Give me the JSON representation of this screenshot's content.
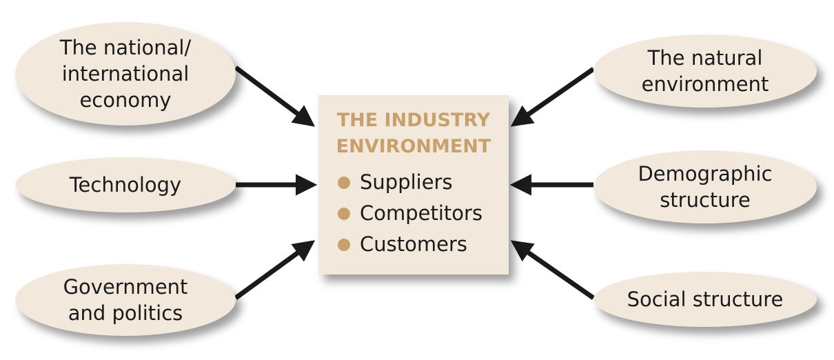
{
  "industry": {
    "title": "THE INDUSTRY\nENVIRONMENT",
    "items": [
      "Suppliers",
      "Competitors",
      "Customers"
    ],
    "title_color": "#c8a06b",
    "bullet_color": "#c8a06b"
  },
  "factors": {
    "economy": "The national/\ninternational\neconomy",
    "technology": "Technology",
    "government": "Government\nand politics",
    "natural": "The natural\nenvironment",
    "demographic": "Demographic\nstructure",
    "social": "Social structure"
  },
  "colors": {
    "oval_fill": "#f2e9dc",
    "box_fill": "#f2e9dc",
    "arrow": "#1a1a1a"
  }
}
